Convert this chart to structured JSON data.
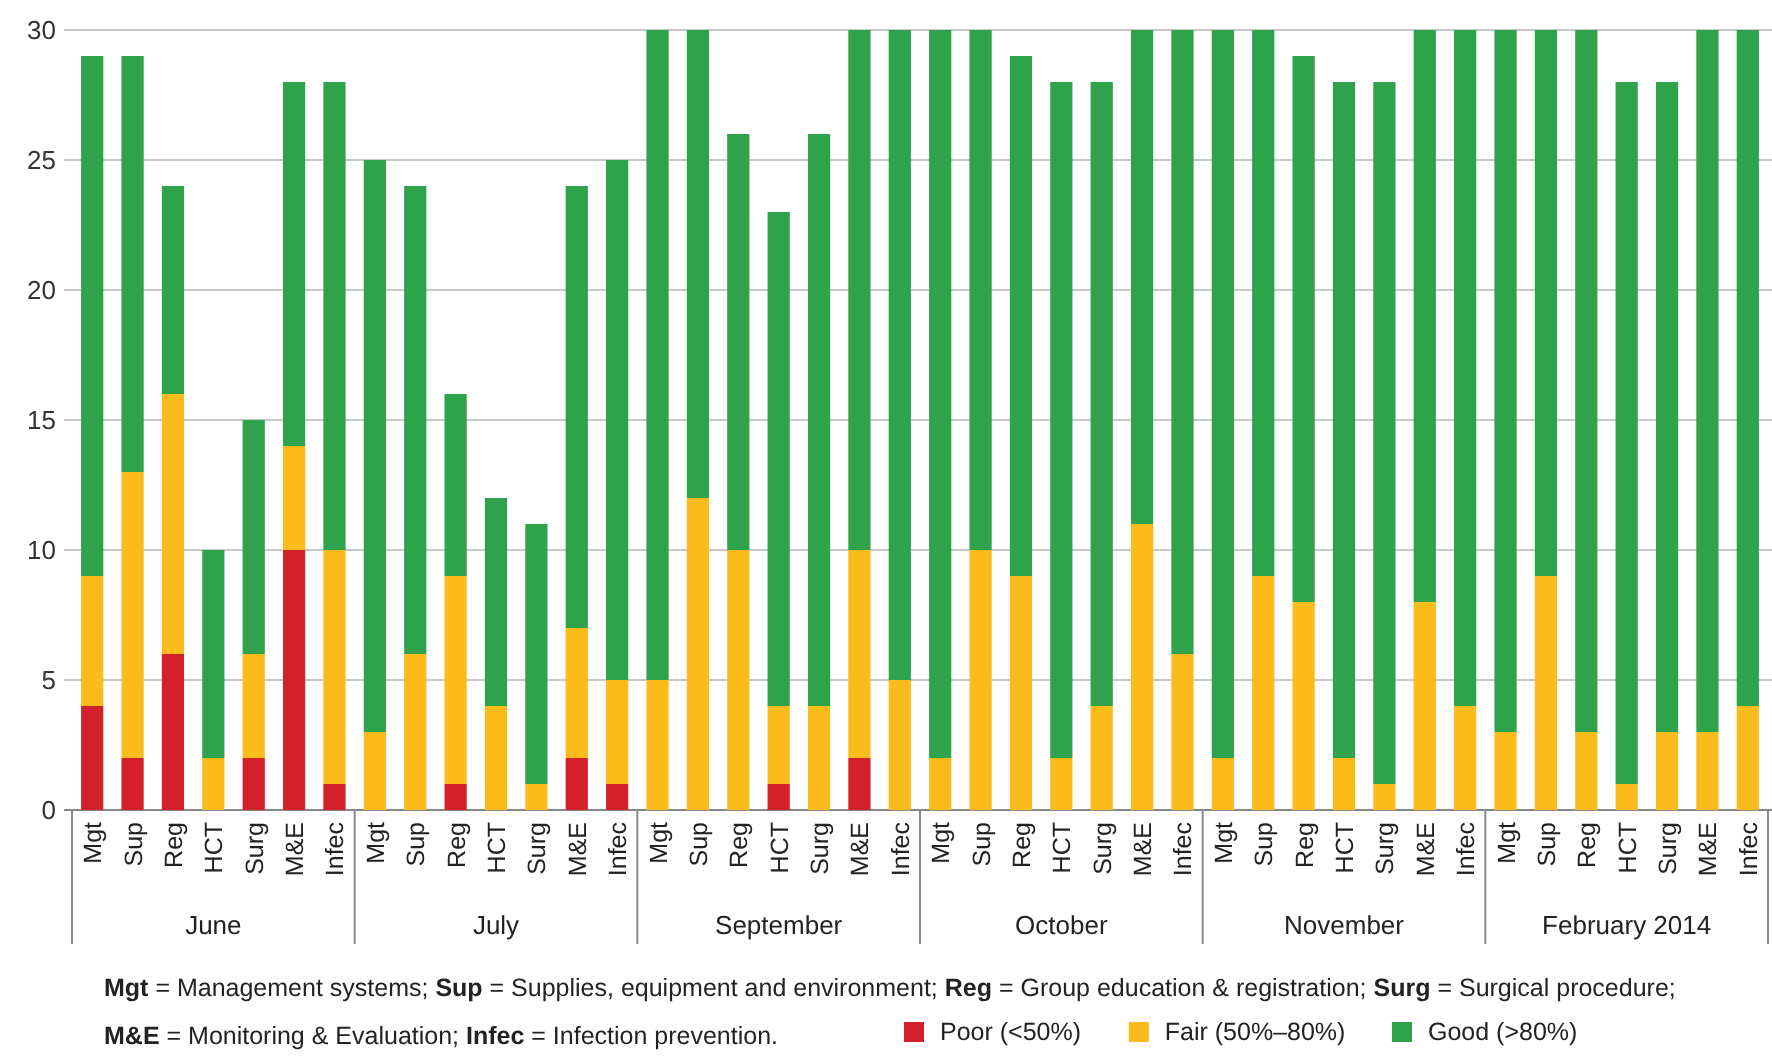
{
  "chart_data": {
    "type": "bar",
    "stacked": true,
    "categories": [
      "Mgt",
      "Sup",
      "Reg",
      "HCT",
      "Surg",
      "M&E",
      "Infec",
      "Mgt",
      "Sup",
      "Reg",
      "HCT",
      "Surg",
      "M&E",
      "Infec",
      "Mgt",
      "Sup",
      "Reg",
      "HCT",
      "Surg",
      "M&E",
      "Infec",
      "Mgt",
      "Sup",
      "Reg",
      "HCT",
      "Surg",
      "M&E",
      "Infec",
      "Mgt",
      "Sup",
      "Reg",
      "HCT",
      "Surg",
      "M&E",
      "Infec",
      "Mgt",
      "Sup",
      "Reg",
      "HCT",
      "Surg",
      "M&E",
      "Infec"
    ],
    "series": [
      {
        "name": "Poor (<50%)",
        "color": "#d3202a",
        "values": [
          4,
          2,
          6,
          0,
          2,
          10,
          1,
          0,
          0,
          1,
          0,
          0,
          2,
          1,
          0,
          0,
          0,
          1,
          0,
          2,
          0,
          0,
          0,
          0,
          0,
          0,
          0,
          0,
          0,
          0,
          0,
          0,
          0,
          0,
          0,
          0,
          0,
          0,
          0,
          0,
          0,
          0
        ]
      },
      {
        "name": "Fair (50%–80%)",
        "color": "#fbbb1a",
        "values": [
          5,
          11,
          10,
          2,
          4,
          4,
          9,
          3,
          6,
          8,
          4,
          1,
          5,
          4,
          5,
          12,
          10,
          3,
          4,
          8,
          5,
          2,
          10,
          9,
          2,
          4,
          11,
          6,
          2,
          9,
          8,
          2,
          1,
          8,
          4,
          3,
          9,
          3,
          1,
          3,
          3,
          4
        ]
      },
      {
        "name": "Good (>80%)",
        "color": "#2fa34b",
        "values": [
          20,
          16,
          8,
          8,
          9,
          14,
          18,
          22,
          18,
          7,
          8,
          10,
          17,
          20,
          25,
          18,
          16,
          19,
          22,
          20,
          25,
          28,
          20,
          20,
          26,
          24,
          19,
          24,
          28,
          21,
          21,
          26,
          27,
          22,
          26,
          27,
          21,
          27,
          27,
          25,
          27,
          26
        ]
      }
    ],
    "ylim": [
      0,
      30
    ],
    "yticks": [
      0,
      5,
      10,
      15,
      20,
      25,
      30
    ],
    "grid": "y",
    "legend": "bottom",
    "annotations": [
      "June",
      "July",
      "September",
      "October",
      "November",
      "February 2014",
      "Mgt = Management systems; Sup = Supplies, equipment and environment; Reg = Group education & registration; Surg = Surgical procedure;",
      "M&E = Monitoring & Evaluation; Infec = Infection prevention."
    ]
  }
}
